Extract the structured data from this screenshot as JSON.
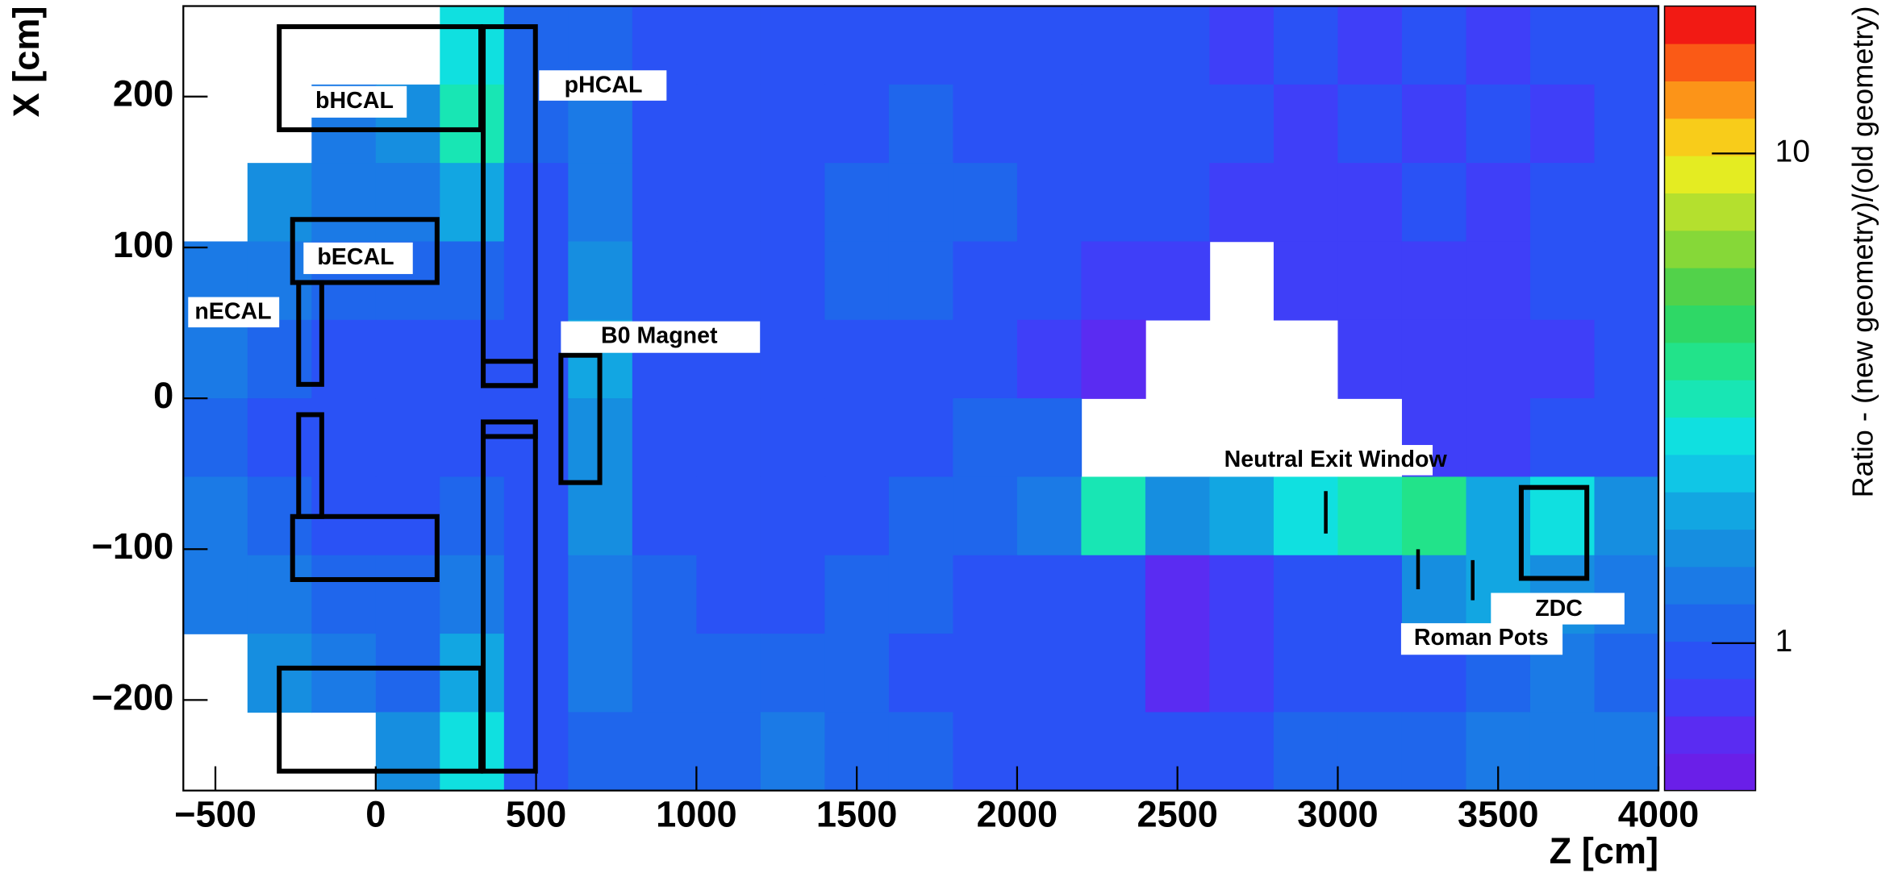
{
  "chart_data": {
    "type": "heatmap",
    "xlabel": "Z [cm]",
    "ylabel": "X [cm]",
    "colorbar_label": "Ratio - (new geometry)/(old geometry)",
    "xlim": [
      -600,
      4000
    ],
    "ylim": [
      -260,
      260
    ],
    "xticks": [
      {
        "value": -500,
        "label": "−500"
      },
      0,
      500,
      1000,
      1500,
      2000,
      2500,
      3000,
      3500,
      4000
    ],
    "yticks": [
      {
        "value": -200,
        "label": "−200"
      },
      {
        "value": -100,
        "label": "−100"
      },
      0,
      100,
      200
    ],
    "zlim": [
      0.5,
      20
    ],
    "zticks": [
      1,
      10
    ],
    "zlog": true,
    "palette": [
      "#6a1fe8",
      "#5a2cf2",
      "#3f3ff8",
      "#2a52f5",
      "#1f66ec",
      "#1b7ae6",
      "#168ee0",
      "#12a6e2",
      "#10c6e6",
      "#10e0e0",
      "#18e6b4",
      "#22e38a",
      "#2ed866",
      "#52d24a",
      "#86d838",
      "#b4e02e",
      "#e4ec22",
      "#f8cc1a",
      "#fc9418",
      "#fa5a16",
      "#f21a14"
    ],
    "z_bins": [
      -600,
      -400,
      -200,
      0,
      200,
      400,
      600,
      800,
      1000,
      1200,
      1400,
      1600,
      1800,
      2000,
      2200,
      2400,
      2600,
      2800,
      3000,
      3200,
      3400,
      3600,
      3800,
      4000
    ],
    "x_bins": [
      260,
      208,
      156,
      104,
      52,
      0,
      -52,
      -104,
      -156,
      -208,
      -260
    ],
    "values": [
      [
        null,
        null,
        null,
        null,
        2.5,
        1.1,
        1.2,
        1.0,
        0.95,
        0.9,
        0.95,
        1.0,
        0.9,
        0.85,
        0.9,
        0.85,
        0.8,
        0.85,
        0.8,
        0.85,
        0.8,
        0.85,
        0.9
      ],
      [
        null,
        null,
        1.3,
        1.6,
        3.0,
        1.1,
        1.3,
        1.0,
        0.95,
        0.95,
        1.0,
        1.1,
        1.0,
        0.9,
        0.9,
        0.85,
        0.85,
        0.8,
        0.85,
        0.8,
        0.85,
        0.8,
        0.85
      ],
      [
        null,
        1.5,
        1.4,
        1.3,
        1.8,
        1.0,
        1.4,
        1.0,
        1.0,
        1.0,
        1.1,
        1.2,
        1.1,
        1.0,
        0.9,
        0.85,
        0.8,
        0.8,
        0.8,
        0.85,
        0.8,
        0.85,
        0.9
      ],
      [
        1.4,
        1.3,
        1.2,
        1.1,
        1.2,
        1.0,
        1.5,
        1.0,
        1.0,
        1.0,
        1.1,
        1.1,
        1.0,
        0.9,
        0.8,
        0.75,
        null,
        0.8,
        0.75,
        0.8,
        0.8,
        0.85,
        0.9
      ],
      [
        1.3,
        1.1,
        1.0,
        0.95,
        1.0,
        0.9,
        1.8,
        1.0,
        0.95,
        0.95,
        1.0,
        1.0,
        0.9,
        0.8,
        0.7,
        null,
        null,
        null,
        0.75,
        0.8,
        0.75,
        0.8,
        0.85
      ],
      [
        1.2,
        1.0,
        0.9,
        0.9,
        0.9,
        0.85,
        1.6,
        0.95,
        0.9,
        0.95,
        0.95,
        1.0,
        1.1,
        1.2,
        null,
        null,
        null,
        null,
        null,
        0.8,
        0.8,
        0.85,
        0.9
      ],
      [
        1.3,
        1.1,
        1.0,
        0.95,
        1.1,
        0.9,
        1.5,
        1.0,
        0.95,
        1.0,
        1.0,
        1.1,
        1.2,
        1.3,
        3.0,
        1.5,
        2.0,
        2.5,
        3.0,
        3.5,
        2.0,
        2.5,
        1.5
      ],
      [
        1.4,
        1.3,
        1.2,
        1.2,
        1.3,
        1.0,
        1.4,
        1.1,
        1.0,
        1.0,
        1.1,
        1.1,
        1.0,
        1.0,
        0.9,
        0.7,
        0.8,
        0.9,
        1.0,
        1.5,
        2.0,
        1.5,
        1.3
      ],
      [
        null,
        1.5,
        1.3,
        1.2,
        2.0,
        1.0,
        1.3,
        1.1,
        1.1,
        1.2,
        1.1,
        1.0,
        1.0,
        0.9,
        0.85,
        0.7,
        0.8,
        0.9,
        0.95,
        1.0,
        1.2,
        1.3,
        1.2
      ],
      [
        null,
        null,
        null,
        1.5,
        2.5,
        1.0,
        1.2,
        1.1,
        1.2,
        1.3,
        1.2,
        1.1,
        1.0,
        1.0,
        0.95,
        0.9,
        1.0,
        1.1,
        1.1,
        1.2,
        1.3,
        1.4,
        1.3
      ]
    ],
    "annotations": [
      "bHCAL",
      "pHCAL",
      "bECAL",
      "nECAL",
      "B0 Magnet",
      "Neutral Exit Window",
      "ZDC",
      "Roman Pots"
    ]
  }
}
